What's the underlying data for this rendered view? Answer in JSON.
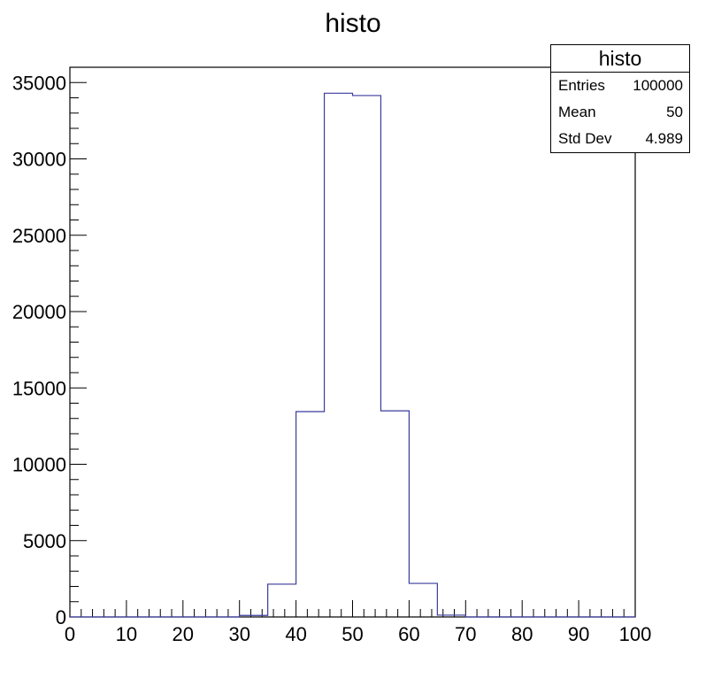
{
  "chart_data": {
    "type": "bar",
    "style": "step-histogram",
    "title": "histo",
    "xlabel": "",
    "ylabel": "",
    "xlim": [
      0,
      100
    ],
    "ylim": [
      0,
      36000
    ],
    "bin_edges": [
      0,
      5,
      10,
      15,
      20,
      25,
      30,
      35,
      40,
      45,
      50,
      55,
      60,
      65,
      70,
      75,
      80,
      85,
      90,
      95,
      100
    ],
    "values": [
      0,
      0,
      0,
      0,
      0,
      0,
      100,
      2150,
      13450,
      34300,
      34150,
      13500,
      2200,
      120,
      0,
      0,
      0,
      0,
      0,
      0
    ],
    "x_ticks": [
      "0",
      "10",
      "20",
      "30",
      "40",
      "50",
      "60",
      "70",
      "80",
      "90",
      "100"
    ],
    "y_ticks": [
      "0",
      "5000",
      "10000",
      "15000",
      "20000",
      "25000",
      "30000",
      "35000"
    ],
    "line_color": "#3b3b9e",
    "legend_position": "top-right"
  },
  "stats": {
    "title": "histo",
    "rows": [
      {
        "label": "Entries",
        "value": "100000"
      },
      {
        "label": "Mean",
        "value": "50"
      },
      {
        "label": "Std Dev",
        "value": "4.989"
      }
    ]
  }
}
